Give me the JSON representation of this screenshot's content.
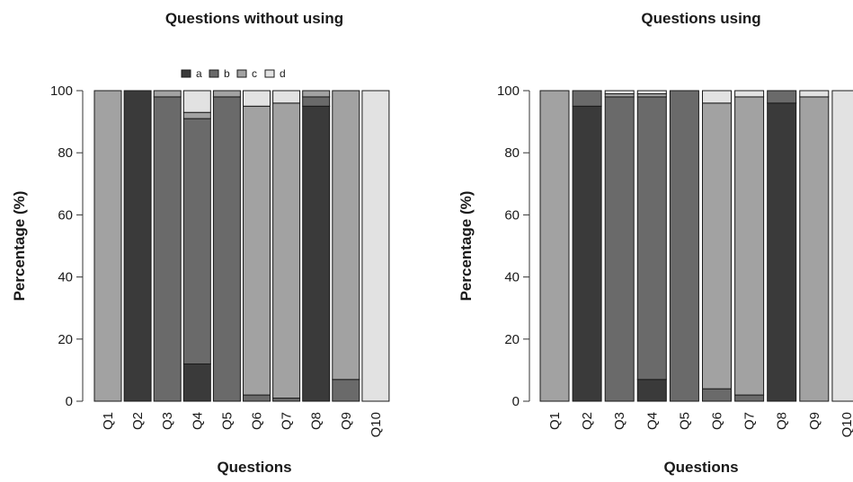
{
  "chart_data": [
    {
      "type": "bar",
      "stacked": true,
      "title": "Questions without using",
      "xlabel": "Questions",
      "ylabel": "Percentage (%)",
      "ylim": [
        0,
        100
      ],
      "yticks": [
        "0",
        "20",
        "40",
        "60",
        "80",
        "100"
      ],
      "categories": [
        "Q1",
        "Q2",
        "Q3",
        "Q4",
        "Q5",
        "Q6",
        "Q7",
        "Q8",
        "Q9",
        "Q10"
      ],
      "legend": {
        "position": "top",
        "entries": [
          "a",
          "b",
          "c",
          "d"
        ]
      },
      "series": [
        {
          "name": "a",
          "color": "#3a3a3a",
          "values": [
            0,
            100,
            0,
            12,
            0,
            0,
            0,
            95,
            0,
            0
          ]
        },
        {
          "name": "b",
          "color": "#6a6a6a",
          "values": [
            0,
            0,
            98,
            79,
            98,
            2,
            1,
            3,
            7,
            0
          ]
        },
        {
          "name": "c",
          "color": "#a2a2a2",
          "values": [
            100,
            0,
            2,
            2,
            2,
            93,
            95,
            2,
            93,
            0
          ]
        },
        {
          "name": "d",
          "color": "#e2e2e2",
          "values": [
            0,
            0,
            0,
            7,
            0,
            5,
            4,
            0,
            0,
            100
          ]
        }
      ]
    },
    {
      "type": "bar",
      "stacked": true,
      "title": "Questions using",
      "xlabel": "Questions",
      "ylabel": "Percentage (%)",
      "ylim": [
        0,
        100
      ],
      "yticks": [
        "0",
        "20",
        "40",
        "60",
        "80",
        "100"
      ],
      "categories": [
        "Q1",
        "Q2",
        "Q3",
        "Q4",
        "Q5",
        "Q6",
        "Q7",
        "Q8",
        "Q9",
        "Q10"
      ],
      "series": [
        {
          "name": "a",
          "color": "#3a3a3a",
          "values": [
            0,
            95,
            0,
            7,
            0,
            0,
            0,
            96,
            0,
            0
          ]
        },
        {
          "name": "b",
          "color": "#6a6a6a",
          "values": [
            0,
            5,
            98,
            91,
            100,
            4,
            2,
            4,
            0,
            0
          ]
        },
        {
          "name": "c",
          "color": "#a2a2a2",
          "values": [
            100,
            0,
            1,
            1,
            0,
            92,
            96,
            0,
            98,
            0
          ]
        },
        {
          "name": "d",
          "color": "#e2e2e2",
          "values": [
            0,
            0,
            1,
            1,
            0,
            4,
            2,
            0,
            2,
            100
          ]
        }
      ]
    }
  ]
}
